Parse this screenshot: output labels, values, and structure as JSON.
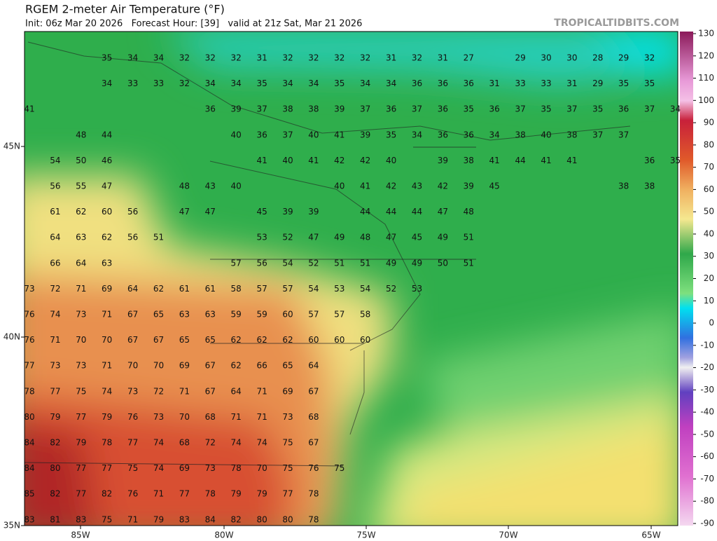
{
  "header": {
    "title": "RGEM 2-meter Air Temperature (°F)",
    "subtitle": "Init: 06z Mar 20 2026   Forecast Hour: [39]   valid at 21z Sat, Mar 21 2026",
    "brand": "TROPICALTIDBITS.COM"
  },
  "map": {
    "latitude_labels": [
      "45N",
      "40N",
      "35N"
    ],
    "longitude_labels": [
      "85W",
      "80W",
      "75W",
      "70W",
      "65W"
    ],
    "temperature_rows": [
      [
        null,
        null,
        null,
        35,
        34,
        34,
        32,
        32,
        32,
        31,
        32,
        32,
        32,
        32,
        31,
        32,
        31,
        27,
        null,
        29,
        30,
        30,
        28,
        29,
        32
      ],
      [
        null,
        null,
        null,
        34,
        33,
        33,
        32,
        34,
        34,
        35,
        34,
        34,
        35,
        34,
        34,
        36,
        36,
        36,
        31,
        33,
        33,
        31,
        29,
        35,
        35
      ],
      [
        41,
        null,
        null,
        null,
        null,
        null,
        null,
        36,
        39,
        37,
        38,
        38,
        39,
        37,
        36,
        37,
        36,
        35,
        36,
        37,
        35,
        37,
        35,
        36,
        37,
        34
      ],
      [
        null,
        null,
        48,
        44,
        null,
        null,
        null,
        null,
        40,
        36,
        37,
        40,
        41,
        39,
        35,
        34,
        36,
        36,
        34,
        38,
        40,
        38,
        37,
        37
      ],
      [
        null,
        54,
        50,
        46,
        null,
        null,
        null,
        null,
        null,
        41,
        40,
        41,
        42,
        42,
        40,
        null,
        39,
        38,
        41,
        44,
        41,
        41,
        null,
        null,
        36,
        35
      ],
      [
        null,
        56,
        55,
        47,
        null,
        null,
        48,
        43,
        40,
        null,
        null,
        null,
        40,
        41,
        42,
        43,
        42,
        39,
        45,
        null,
        null,
        null,
        null,
        38,
        38
      ],
      [
        null,
        61,
        62,
        60,
        56,
        null,
        47,
        47,
        null,
        45,
        39,
        39,
        null,
        44,
        44,
        44,
        47,
        48
      ],
      [
        null,
        64,
        63,
        62,
        56,
        51,
        null,
        null,
        null,
        53,
        52,
        47,
        49,
        48,
        47,
        45,
        49,
        51
      ],
      [
        null,
        66,
        64,
        63,
        null,
        null,
        null,
        null,
        57,
        56,
        54,
        52,
        51,
        51,
        49,
        49,
        50,
        51
      ],
      [
        73,
        72,
        71,
        69,
        64,
        62,
        61,
        61,
        58,
        57,
        57,
        54,
        53,
        54,
        52,
        53
      ],
      [
        76,
        74,
        73,
        71,
        67,
        65,
        63,
        63,
        59,
        59,
        60,
        57,
        57,
        58
      ],
      [
        76,
        71,
        70,
        70,
        67,
        67,
        65,
        65,
        62,
        62,
        62,
        60,
        60,
        60
      ],
      [
        77,
        73,
        73,
        71,
        70,
        70,
        69,
        67,
        62,
        66,
        65,
        64
      ],
      [
        78,
        77,
        75,
        74,
        73,
        72,
        71,
        67,
        64,
        71,
        69,
        67
      ],
      [
        80,
        79,
        77,
        79,
        76,
        73,
        70,
        68,
        71,
        71,
        73,
        68
      ],
      [
        84,
        82,
        79,
        78,
        77,
        74,
        68,
        72,
        74,
        74,
        75,
        67
      ],
      [
        84,
        80,
        77,
        77,
        75,
        74,
        69,
        73,
        78,
        70,
        75,
        76,
        75
      ],
      [
        85,
        82,
        77,
        82,
        76,
        71,
        77,
        78,
        79,
        79,
        77,
        78
      ],
      [
        83,
        81,
        83,
        75,
        71,
        79,
        83,
        84,
        82,
        80,
        80,
        78
      ]
    ]
  },
  "colorbar": {
    "ticks": [
      130,
      120,
      110,
      100,
      90,
      80,
      70,
      60,
      50,
      40,
      30,
      20,
      10,
      0,
      -10,
      -20,
      -30,
      -40,
      -50,
      -60,
      -70,
      -80,
      -90
    ]
  }
}
